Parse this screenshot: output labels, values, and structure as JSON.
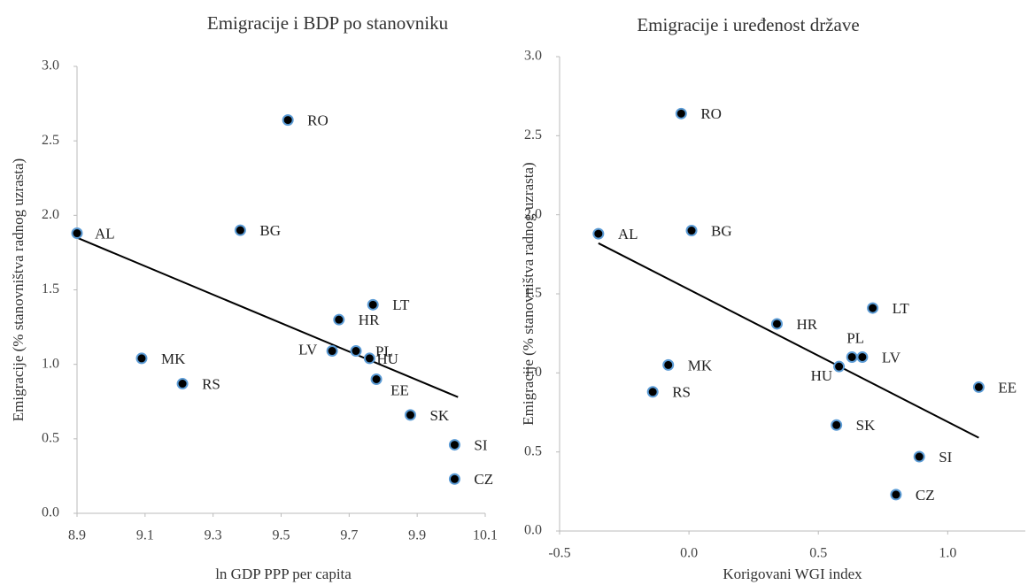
{
  "chart_data": [
    {
      "type": "scatter",
      "title": "Emigracije i BDP po stanovniku",
      "x_label": "ln GDP PPP per capita",
      "y_label": "Emigracije (% stanovništva radnog uzrasta)",
      "labels": [
        "AL",
        "RO",
        "BG",
        "MK",
        "RS",
        "LT",
        "HR",
        "LV",
        "PL",
        "HU",
        "EE",
        "SK",
        "SI",
        "CZ"
      ],
      "x": [
        8.9,
        9.52,
        9.38,
        9.09,
        9.21,
        9.77,
        9.67,
        9.65,
        9.72,
        9.76,
        9.78,
        9.88,
        10.01,
        10.01
      ],
      "y": [
        1.88,
        2.64,
        1.9,
        1.04,
        0.87,
        1.4,
        1.3,
        1.09,
        1.09,
        1.04,
        0.9,
        0.66,
        0.46,
        0.23
      ],
      "color": "#000000",
      "edgecolor": "#5b9bd5",
      "trendline": {
        "x": [
          8.9,
          10.02
        ],
        "y": [
          1.85,
          0.78
        ],
        "color": "#000000"
      },
      "xlim": [
        8.9,
        10.1
      ],
      "xticks": [
        8.9,
        9.1,
        9.3,
        9.5,
        9.7,
        9.9,
        10.1
      ],
      "ylim": [
        0,
        3
      ],
      "yticks": [
        {
          "value": 0,
          "label": "0.0"
        },
        0.5,
        {
          "value": 1,
          "label": "1.0"
        },
        1.5,
        {
          "value": 2,
          "label": "2.0"
        },
        2.5,
        {
          "value": 3,
          "label": "3.0"
        }
      ],
      "grid": false
    },
    {
      "type": "scatter",
      "title": "Emigracije i uređenost države",
      "x_label": "Korigovani WGI index",
      "y_label": "Emigracije (% stanovništva radnog uzrasta)",
      "labels": [
        "AL",
        "RO",
        "BG",
        "MK",
        "RS",
        "HR",
        "LT",
        "PL",
        "LV",
        "HU",
        "EE",
        "SK",
        "SI",
        "CZ"
      ],
      "x": [
        -0.35,
        -0.03,
        0.01,
        -0.08,
        -0.14,
        0.34,
        0.71,
        0.63,
        0.67,
        0.58,
        1.12,
        0.57,
        0.89,
        0.8
      ],
      "y": [
        1.88,
        2.64,
        1.9,
        1.05,
        0.88,
        1.31,
        1.41,
        1.1,
        1.1,
        1.04,
        0.91,
        0.67,
        0.47,
        0.23
      ],
      "color": "#000000",
      "edgecolor": "#5b9bd5",
      "trendline": {
        "x": [
          -0.35,
          1.12
        ],
        "y": [
          1.82,
          0.59
        ],
        "color": "#000000"
      },
      "xlim": [
        -0.5,
        1.3
      ],
      "xticks": [
        -0.5,
        {
          "value": 0,
          "label": "0.0"
        },
        0.5,
        {
          "value": 1,
          "label": "1.0"
        }
      ],
      "ylim": [
        0,
        3
      ],
      "yticks": [
        {
          "value": 0,
          "label": "0.0"
        },
        0.5,
        {
          "value": 1,
          "label": "1.0"
        },
        1.5,
        {
          "value": 2,
          "label": "2.0"
        },
        2.5,
        {
          "value": 3,
          "label": "3.0"
        }
      ],
      "grid": false
    }
  ]
}
